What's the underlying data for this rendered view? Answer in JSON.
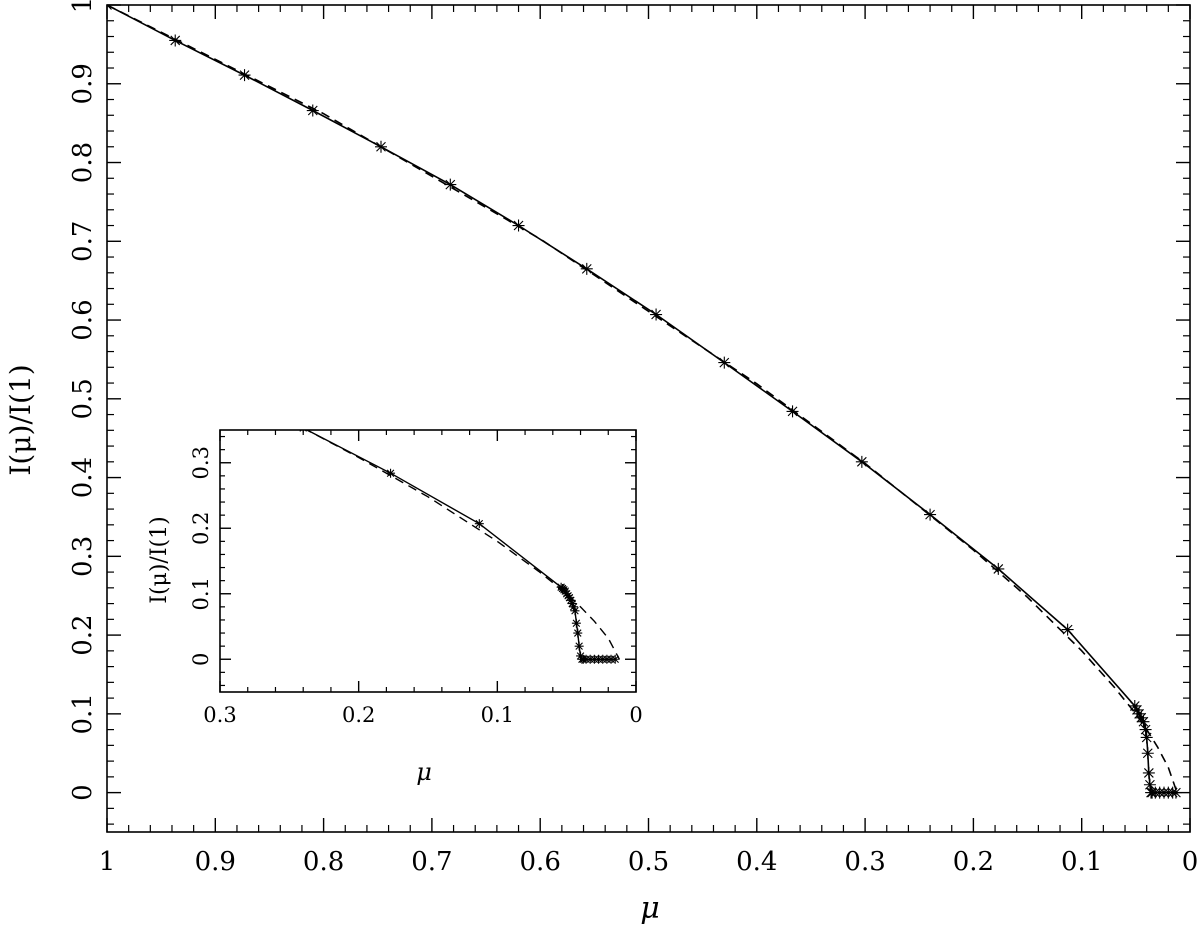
{
  "chart_data": [
    {
      "id": "main",
      "type": "line",
      "xlabel": "μ",
      "ylabel": "I(μ)/I(1)",
      "xlim": [
        1,
        0
      ],
      "ylim": [
        -0.05,
        1
      ],
      "x_reversed": true,
      "x_ticks": [
        1,
        0.9,
        0.8,
        0.7,
        0.6,
        0.5,
        0.4,
        0.3,
        0.2,
        0.1,
        0
      ],
      "x_tick_labels": [
        "1",
        "0.9",
        "0.8",
        "0.7",
        "0.6",
        "0.5",
        "0.4",
        "0.3",
        "0.2",
        "0.1",
        "0"
      ],
      "y_ticks": [
        0,
        0.1,
        0.2,
        0.3,
        0.4,
        0.5,
        0.6,
        0.7,
        0.8,
        0.9,
        1
      ],
      "y_tick_labels": [
        "0",
        "0.1",
        "0.2",
        "0.3",
        "0.4",
        "0.5",
        "0.6",
        "0.7",
        "0.8",
        "0.9",
        "1"
      ],
      "grid": false,
      "series": [
        {
          "style": "solid-with-star-markers",
          "x": [
            1.0,
            0.937,
            0.873,
            0.81,
            0.747,
            0.683,
            0.62,
            0.557,
            0.493,
            0.43,
            0.367,
            0.303,
            0.24,
            0.177,
            0.113,
            0.051,
            0.049,
            0.047,
            0.045,
            0.043,
            0.041,
            0.04,
            0.039,
            0.038,
            0.037,
            0.036,
            0.035,
            0.032,
            0.028,
            0.024,
            0.02,
            0.016,
            0.013
          ],
          "y": [
            1.0,
            0.955,
            0.911,
            0.866,
            0.82,
            0.772,
            0.72,
            0.665,
            0.607,
            0.546,
            0.484,
            0.42,
            0.353,
            0.284,
            0.207,
            0.11,
            0.105,
            0.1,
            0.095,
            0.09,
            0.08,
            0.07,
            0.05,
            0.025,
            0.01,
            0.0,
            0.0,
            0.0,
            0.0,
            0.0,
            0.0,
            0.0,
            0.0
          ]
        },
        {
          "style": "dashed",
          "x": [
            1.0,
            0.8,
            0.6,
            0.4,
            0.3,
            0.2,
            0.15,
            0.1,
            0.07,
            0.05,
            0.04,
            0.03,
            0.02,
            0.012
          ],
          "y": [
            1.0,
            0.862,
            0.703,
            0.519,
            0.418,
            0.308,
            0.248,
            0.18,
            0.134,
            0.1,
            0.08,
            0.058,
            0.032,
            0.0
          ]
        }
      ]
    },
    {
      "id": "inset",
      "type": "line",
      "xlabel": "μ",
      "ylabel": "I(μ)/I(1)",
      "xlim": [
        0.3,
        0
      ],
      "ylim": [
        -0.05,
        0.35
      ],
      "x_reversed": true,
      "x_ticks": [
        0.3,
        0.2,
        0.1,
        0
      ],
      "x_tick_labels": [
        "0.3",
        "0.2",
        "0.1",
        "0"
      ],
      "y_ticks": [
        0,
        0.1,
        0.2,
        0.3
      ],
      "y_tick_labels": [
        "0",
        "0.1",
        "0.2",
        "0.3"
      ],
      "grid": false,
      "series": [
        {
          "style": "solid-with-star-markers",
          "x": [
            0.24,
            0.177,
            0.113,
            0.054,
            0.053,
            0.052,
            0.051,
            0.05,
            0.049,
            0.048,
            0.047,
            0.046,
            0.045,
            0.044,
            0.043,
            0.042,
            0.041,
            0.04,
            0.039,
            0.038,
            0.036,
            0.033,
            0.03,
            0.027,
            0.024,
            0.021,
            0.018,
            0.015
          ],
          "y": [
            0.353,
            0.284,
            0.207,
            0.11,
            0.108,
            0.106,
            0.104,
            0.1,
            0.097,
            0.094,
            0.09,
            0.085,
            0.08,
            0.074,
            0.055,
            0.04,
            0.02,
            0.005,
            0.0,
            0.0,
            0.0,
            0.0,
            0.0,
            0.0,
            0.0,
            0.0,
            0.0,
            0.0
          ]
        },
        {
          "style": "dashed",
          "x": [
            0.24,
            0.2,
            0.15,
            0.1,
            0.07,
            0.05,
            0.04,
            0.03,
            0.02,
            0.012
          ],
          "y": [
            0.353,
            0.308,
            0.248,
            0.18,
            0.134,
            0.1,
            0.08,
            0.058,
            0.032,
            0.0
          ]
        }
      ]
    }
  ]
}
